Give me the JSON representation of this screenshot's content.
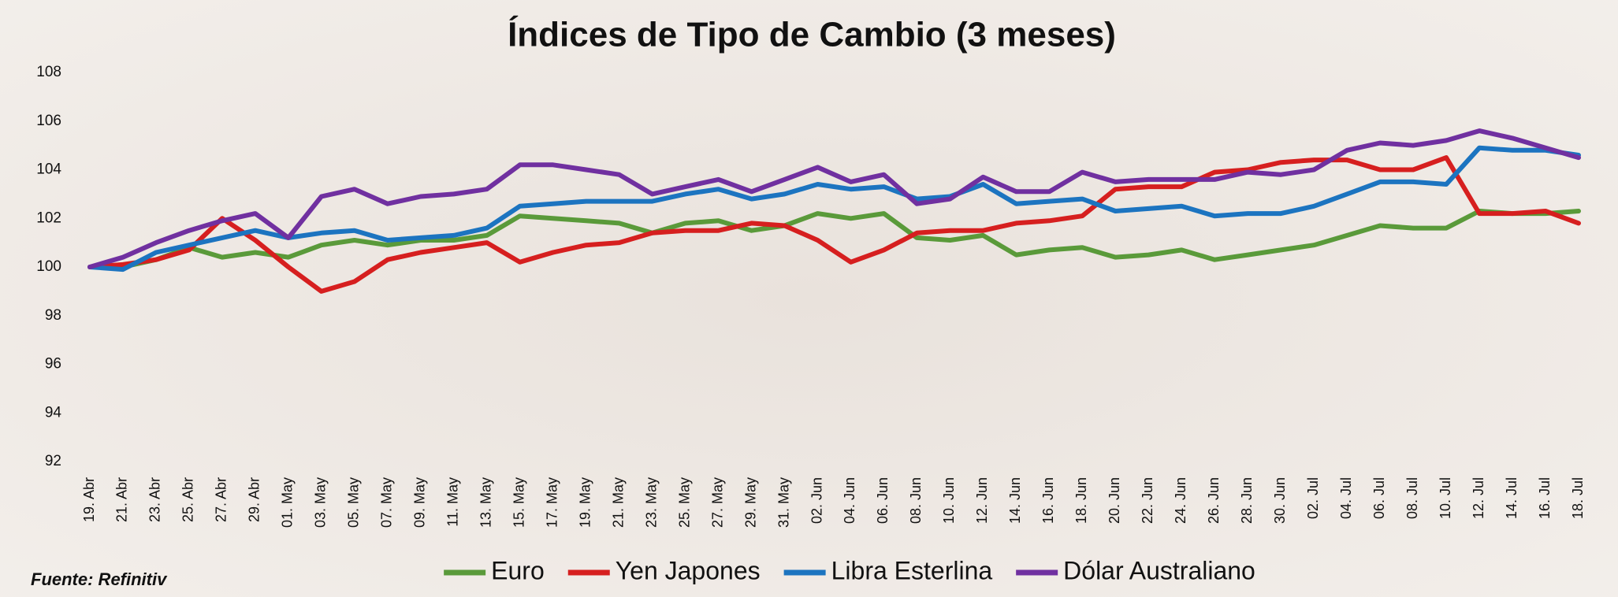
{
  "chart_data": {
    "type": "line",
    "title": "Índices de Tipo de Cambio (3 meses)",
    "source": "Fuente: Refinitiv",
    "legend": "bottom",
    "categories": [
      "19. Abr",
      "21. Abr",
      "23. Abr",
      "25. Abr",
      "27. Abr",
      "29. Abr",
      "01. May",
      "03. May",
      "05. May",
      "07. May",
      "09. May",
      "11. May",
      "13. May",
      "15. May",
      "17. May",
      "19. May",
      "21. May",
      "23. May",
      "25. May",
      "27. May",
      "29. May",
      "31. May",
      "02. Jun",
      "04. Jun",
      "06. Jun",
      "08. Jun",
      "10. Jun",
      "12. Jun",
      "14. Jun",
      "16. Jun",
      "18. Jun",
      "20. Jun",
      "22. Jun",
      "24. Jun",
      "26. Jun",
      "28. Jun",
      "30. Jun",
      "02. Jul",
      "04. Jul",
      "06. Jul",
      "08. Jul",
      "10. Jul",
      "12. Jul",
      "14. Jul",
      "16. Jul",
      "18. Jul"
    ],
    "series": [
      {
        "name": "Euro",
        "color": "#5a9a3a",
        "values": [
          100,
          100,
          100.3,
          100.8,
          100.4,
          100.6,
          100.4,
          100.9,
          101.1,
          100.9,
          101.1,
          101.1,
          101.3,
          102.1,
          102.0,
          101.9,
          101.8,
          101.4,
          101.8,
          101.9,
          101.5,
          101.7,
          102.2,
          102.0,
          102.2,
          101.2,
          101.1,
          101.3,
          100.5,
          100.7,
          100.8,
          100.4,
          100.5,
          100.7,
          100.3,
          100.5,
          100.7,
          100.9,
          101.3,
          101.7,
          101.6,
          101.6,
          102.3,
          102.2,
          102.2,
          102.3
        ]
      },
      {
        "name": "Yen Japones",
        "color": "#d61f1f",
        "values": [
          100,
          100.1,
          100.3,
          100.7,
          102.0,
          101.1,
          100.0,
          99.0,
          99.4,
          100.3,
          100.6,
          100.8,
          101.0,
          100.2,
          100.6,
          100.9,
          101.0,
          101.4,
          101.5,
          101.5,
          101.8,
          101.7,
          101.1,
          100.2,
          100.7,
          101.4,
          101.5,
          101.5,
          101.8,
          101.9,
          102.1,
          103.2,
          103.3,
          103.3,
          103.9,
          104.0,
          104.3,
          104.4,
          104.4,
          104.0,
          104.0,
          104.5,
          102.2,
          102.2,
          102.3,
          101.8
        ]
      },
      {
        "name": "Libra Esterlina",
        "color": "#1c74c0",
        "values": [
          100,
          99.9,
          100.6,
          100.9,
          101.2,
          101.5,
          101.2,
          101.4,
          101.5,
          101.1,
          101.2,
          101.3,
          101.6,
          102.5,
          102.6,
          102.7,
          102.7,
          102.7,
          103.0,
          103.2,
          102.8,
          103.0,
          103.4,
          103.2,
          103.3,
          102.8,
          102.9,
          103.4,
          102.6,
          102.7,
          102.8,
          102.3,
          102.4,
          102.5,
          102.1,
          102.2,
          102.2,
          102.5,
          103.0,
          103.5,
          103.5,
          103.4,
          104.9,
          104.8,
          104.8,
          104.6
        ]
      },
      {
        "name": "Dólar Australiano",
        "color": "#7030a0",
        "values": [
          100,
          100.4,
          101.0,
          101.5,
          101.9,
          102.2,
          101.2,
          102.9,
          103.2,
          102.6,
          102.9,
          103.0,
          103.2,
          104.2,
          104.2,
          104.0,
          103.8,
          103.0,
          103.3,
          103.6,
          103.1,
          103.6,
          104.1,
          103.5,
          103.8,
          102.6,
          102.8,
          103.7,
          103.1,
          103.1,
          103.9,
          103.5,
          103.6,
          103.6,
          103.6,
          103.9,
          103.8,
          104.0,
          104.8,
          105.1,
          105.0,
          105.2,
          105.6,
          105.3,
          104.9,
          104.5
        ]
      }
    ],
    "ylim": [
      92,
      108
    ],
    "yticks": [
      92,
      94,
      96,
      98,
      100,
      102,
      104,
      106,
      108
    ],
    "grid": false
  }
}
